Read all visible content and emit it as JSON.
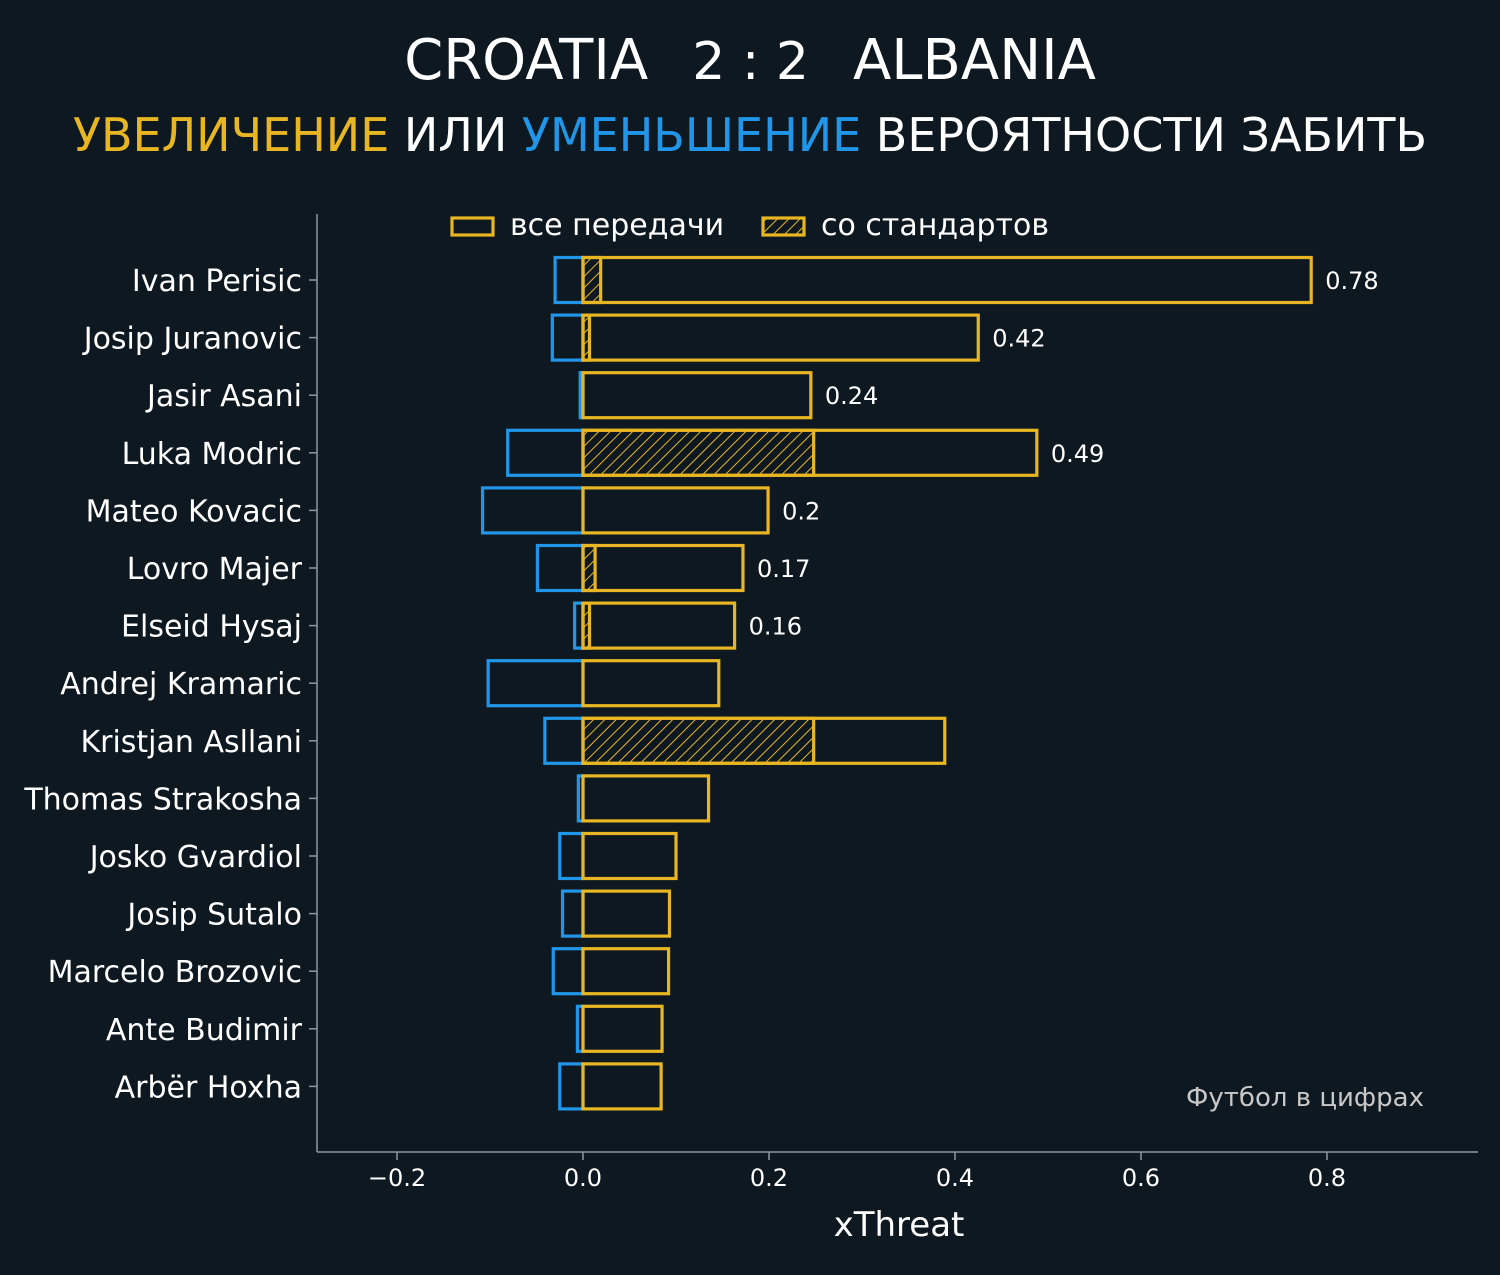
{
  "header": {
    "team_home": "CROATIA",
    "score": "2 : 2",
    "team_away": "ALBANIA",
    "subtitle_part1": "УВЕЛИЧЕНИЕ",
    "subtitle_part2": " ИЛИ ",
    "subtitle_part3": "УМЕНЬШЕНИЕ",
    "subtitle_part4": " ВЕРОЯТНОСТИ ЗАБИТЬ"
  },
  "colors": {
    "background": "#0e1820",
    "positive": "#e8b622",
    "negative": "#2196e8",
    "axis": "#8a9aa3",
    "text": "#ffffff",
    "watermark": "#c8c8c8"
  },
  "watermark": "Футбол в цифрах",
  "chart_data": {
    "type": "bar",
    "orientation": "horizontal",
    "xlabel": "xThreat",
    "ylabel": "",
    "xlim": [
      -0.285,
      0.96
    ],
    "xticks": [
      -0.2,
      0.0,
      0.2,
      0.4,
      0.6,
      0.8
    ],
    "xtick_labels": [
      "−0.2",
      "0.0",
      "0.2",
      "0.4",
      "0.6",
      "0.8"
    ],
    "grid": false,
    "legend_position": "top-center",
    "legend": [
      {
        "label": "все передачи",
        "style": "outline"
      },
      {
        "label": "со стандартов",
        "style": "hatched"
      }
    ],
    "categories": [
      "Ivan Perisic",
      "Josip Juranovic",
      "Jasir Asani",
      "Luka Modric",
      "Mateo Kovacic",
      "Lovro Majer",
      "Elseid Hysaj",
      "Andrej Kramaric",
      "Kristjan Asllani",
      "Thomas Strakosha",
      "Josko Gvardiol",
      "Josip Sutalo",
      "Marcelo Brozovic",
      "Ante Budimir",
      "Arbër Hoxha"
    ],
    "series": [
      {
        "name": "все передачи",
        "values": [
          0.783,
          0.425,
          0.245,
          0.488,
          0.199,
          0.172,
          0.163,
          0.146,
          0.389,
          0.135,
          0.1,
          0.093,
          0.092,
          0.085,
          0.084
        ]
      },
      {
        "name": "со стандартов",
        "values": [
          0.019,
          0.007,
          0.0,
          0.248,
          0.0,
          0.013,
          0.007,
          0.0,
          0.248,
          0.0,
          0.0,
          0.0,
          0.0,
          0.0,
          0.0
        ]
      },
      {
        "name": "negative",
        "values": [
          -0.03,
          -0.033,
          -0.003,
          -0.081,
          -0.108,
          -0.049,
          -0.009,
          -0.102,
          -0.041,
          -0.005,
          -0.025,
          -0.022,
          -0.032,
          -0.006,
          -0.025
        ]
      }
    ],
    "value_labels": [
      "0.78",
      "0.42",
      "0.24",
      "0.49",
      "0.2",
      "0.17",
      "0.16",
      "",
      "",
      "",
      "",
      "",
      "",
      "",
      ""
    ]
  }
}
